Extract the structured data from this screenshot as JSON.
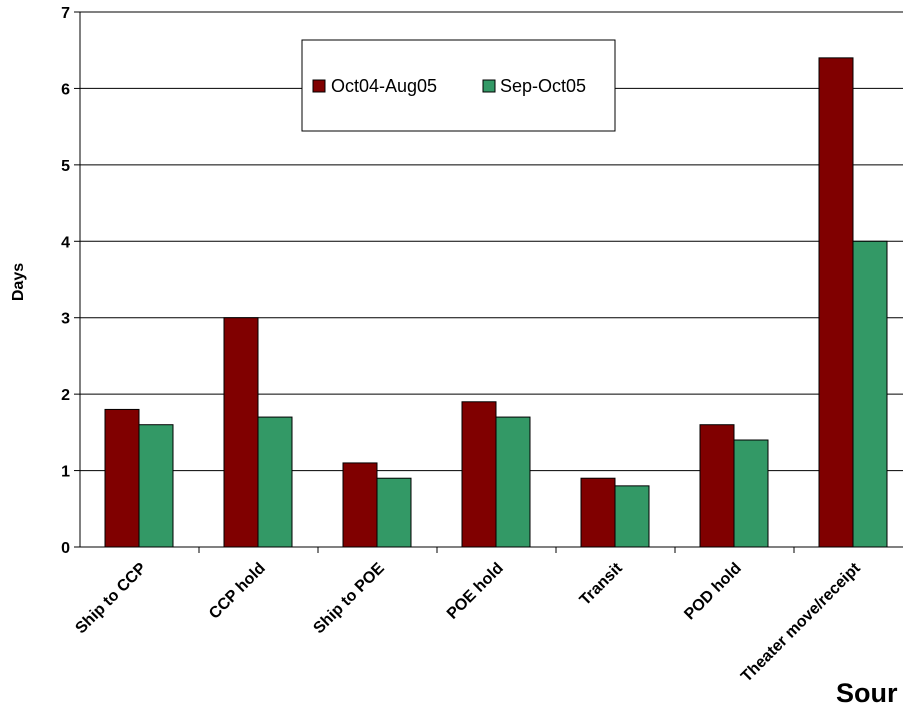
{
  "chart_data": {
    "type": "bar",
    "title": "",
    "xlabel": "",
    "ylabel": "Days",
    "ylim": [
      0,
      7
    ],
    "yticks": [
      0,
      1,
      2,
      3,
      4,
      5,
      6,
      7
    ],
    "grid": true,
    "legend_position": "top-center",
    "categories": [
      "Ship to CCP",
      "CCP hold",
      "Ship to POE",
      "POE hold",
      "Transit",
      "POD hold",
      "Theater move/receipt"
    ],
    "series": [
      {
        "name": "Oct04-Aug05",
        "color": "#800000",
        "values": [
          1.8,
          3.0,
          1.1,
          1.9,
          0.9,
          1.6,
          6.4
        ]
      },
      {
        "name": "Sep-Oct05",
        "color": "#339966",
        "values": [
          1.6,
          1.7,
          0.9,
          1.7,
          0.8,
          1.4,
          4.0
        ]
      }
    ],
    "annotation": "Sour"
  }
}
